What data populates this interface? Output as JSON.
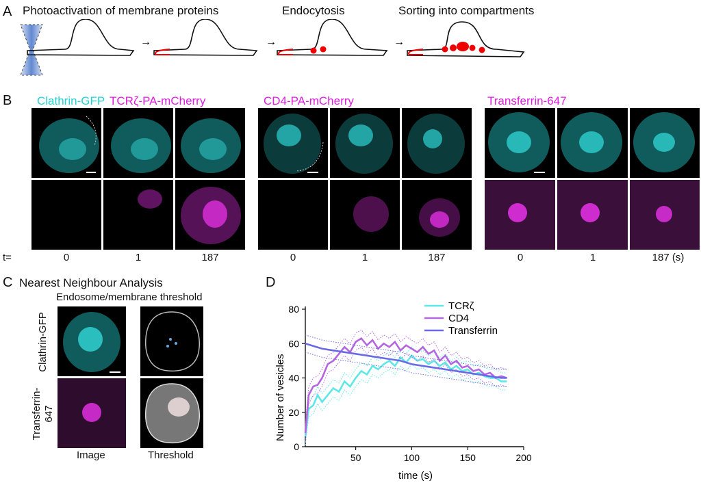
{
  "panelA": {
    "letter": "A",
    "steps": [
      "Photoactivation of membrane proteins",
      "Endocytosis",
      "Sorting into compartments"
    ]
  },
  "panelB": {
    "letter": "B",
    "label_clathrin": "Clathrin-GFP",
    "label_tcr": "TCRζ-PA-mCherry",
    "label_cd4": "CD4-PA-mCherry",
    "label_tf": "Transferrin-647",
    "t_prefix": "t=",
    "timepoints": [
      "0",
      "1",
      "187",
      "0",
      "1",
      "187",
      "0",
      "1",
      "187 (s)"
    ]
  },
  "panelC": {
    "letter": "C",
    "title": "Nearest Neighbour Analysis",
    "subtitle": "Endosome/membrane threshold",
    "row1": "Clathrin-GFP",
    "row2": "Transferrin-647",
    "col1": "Image",
    "col2": "Threshold"
  },
  "colors": {
    "cyan": "#5ee7e7",
    "purple": "#b565e0",
    "blue": "#6a6ae6"
  },
  "chart_data": {
    "type": "line",
    "panel": "D",
    "title": "",
    "xlabel": "time (s)",
    "ylabel": "Number of vesicles",
    "xlim": [
      5,
      200
    ],
    "ylim": [
      0,
      80
    ],
    "xticks": [
      "50",
      "100",
      "150",
      "200"
    ],
    "yticks": [
      "0",
      "20",
      "40",
      "60",
      "80"
    ],
    "legend": "top-right",
    "series": [
      {
        "name": "TCRζ",
        "x": [
          5,
          8,
          12,
          16,
          20,
          25,
          30,
          35,
          40,
          45,
          50,
          55,
          60,
          65,
          70,
          75,
          80,
          85,
          90,
          95,
          100,
          105,
          110,
          115,
          120,
          125,
          130,
          135,
          140,
          145,
          150,
          155,
          160,
          165,
          170,
          175,
          180,
          185
        ],
        "y": [
          6,
          22,
          24,
          30,
          26,
          30,
          34,
          32,
          38,
          35,
          40,
          44,
          42,
          47,
          45,
          48,
          50,
          47,
          52,
          49,
          53,
          50,
          51,
          48,
          50,
          47,
          49,
          45,
          47,
          44,
          45,
          42,
          43,
          41,
          40,
          40,
          38,
          38
        ]
      },
      {
        "name": "CD4",
        "x": [
          5,
          8,
          12,
          16,
          20,
          25,
          30,
          35,
          40,
          45,
          50,
          55,
          60,
          65,
          70,
          75,
          80,
          85,
          90,
          95,
          100,
          105,
          110,
          115,
          120,
          125,
          130,
          135,
          140,
          145,
          150,
          155,
          160,
          165,
          170,
          175,
          180,
          185
        ],
        "y": [
          8,
          30,
          35,
          36,
          40,
          48,
          50,
          54,
          58,
          55,
          61,
          63,
          59,
          62,
          57,
          60,
          58,
          61,
          56,
          59,
          57,
          55,
          58,
          54,
          56,
          50,
          53,
          48,
          50,
          46,
          47,
          44,
          45,
          42,
          43,
          40,
          41,
          40
        ]
      },
      {
        "name": "Transferrin",
        "x": [
          5,
          10,
          20,
          30,
          40,
          50,
          60,
          70,
          80,
          90,
          100,
          110,
          120,
          130,
          140,
          150,
          160,
          170,
          180,
          185
        ],
        "y": [
          60,
          59,
          57,
          56,
          55,
          54,
          53,
          52,
          51,
          50,
          48,
          47,
          46,
          45,
          44,
          43,
          42,
          41,
          40,
          40
        ]
      }
    ]
  }
}
